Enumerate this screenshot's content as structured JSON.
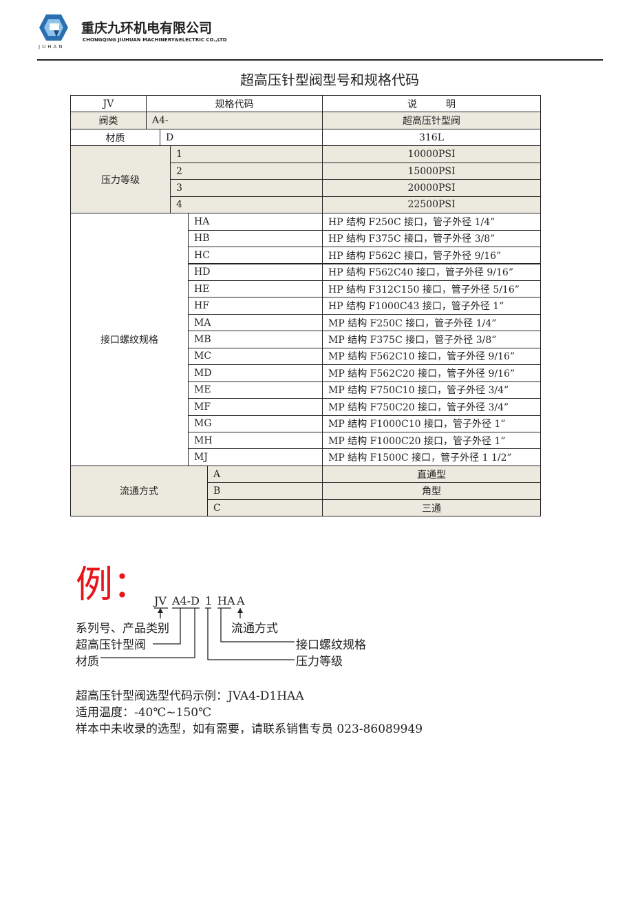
{
  "header": {
    "company_cn": "重庆九环机电有限公司",
    "company_en": "CHONGQING JIUHUAN MACHINERY&ELECTRIC CO.,LTD",
    "logo_text": "JUHAN",
    "brand_color": "#2a6fb0"
  },
  "title": "超高压针型阀型号和规格代码",
  "table": {
    "header": [
      "JV",
      "规格代码",
      "说　　　明"
    ],
    "sections": [
      {
        "label": "阀类",
        "rows": [
          [
            "A4-",
            "超高压针型阀"
          ]
        ]
      },
      {
        "label": "材质",
        "rows": [
          [
            "D",
            "316L"
          ]
        ]
      },
      {
        "label": "压力等级",
        "rows": [
          [
            "1",
            "10000PSI"
          ],
          [
            "2",
            "15000PSI"
          ],
          [
            "3",
            "20000PSI"
          ],
          [
            "4",
            "22500PSI"
          ]
        ]
      },
      {
        "label": "接口螺纹规格",
        "rows": [
          [
            "HA",
            "HP 结构 F250C 接口，管子外径 1/4”"
          ],
          [
            "HB",
            "HP 结构 F375C 接口，管子外径 3/8”"
          ],
          [
            "HC",
            "HP 结构 F562C 接口，管子外径 9/16”"
          ],
          [
            "HD",
            "HP 结构 F562C40 接口，管子外径 9/16”"
          ],
          [
            "HE",
            "HP 结构 F312C150 接口，管子外径 5/16”"
          ],
          [
            "HF",
            "HP 结构 F1000C43 接口，管子外径 1”"
          ],
          [
            "MA",
            "MP 结构 F250C 接口，管子外径 1/4”"
          ],
          [
            "MB",
            "MP 结构 F375C 接口，管子外径 3/8”"
          ],
          [
            "MC",
            "MP 结构 F562C10 接口，管子外径 9/16”"
          ],
          [
            "MD",
            "MP 结构 F562C20 接口，管子外径 9/16”"
          ],
          [
            "ME",
            "MP 结构 F750C10 接口，管子外径 3/4”"
          ],
          [
            "MF",
            "MP 结构 F750C20 接口，管子外径 3/4”"
          ],
          [
            "MG",
            "MP 结构 F1000C10 接口，管子外径 1”"
          ],
          [
            "MH",
            "MP 结构 F1000C20 接口，管子外径 1”"
          ],
          [
            "MJ",
            "MP 结构 F1500C 接口，管子外径 1 1/2”"
          ]
        ]
      },
      {
        "label": "流通方式",
        "rows": [
          [
            "A",
            "直通型"
          ],
          [
            "B",
            "角型"
          ],
          [
            "C",
            "三通"
          ]
        ]
      }
    ]
  },
  "example": {
    "mark": "例：",
    "codes": [
      "JV",
      "A4-D",
      "1",
      "HA",
      "A"
    ],
    "labels": {
      "series": "系列号、产品类别",
      "valve": "超高压针型阀",
      "material": "材质",
      "flow": "流通方式",
      "thread": "接口螺纹规格",
      "pressure": "压力等级"
    },
    "mark_color": "#e8141a"
  },
  "notes": [
    "超高压针型阀选型代码示例：JVA4-D1HAA",
    "适用温度：-40℃~150℃",
    "样本中未收录的选型，如有需要，请联系销售专员 023-86089949"
  ]
}
